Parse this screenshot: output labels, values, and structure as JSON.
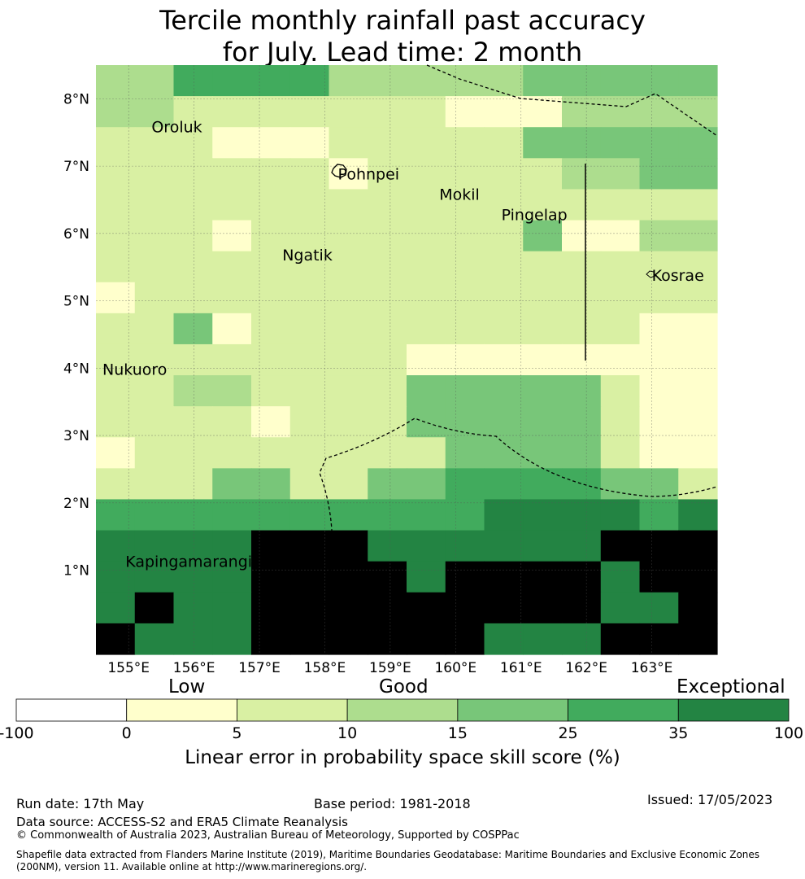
{
  "title": {
    "line1": "Tercile monthly rainfall past accuracy",
    "line2": "for July. Lead time: 2 month"
  },
  "map": {
    "lat_labels": [
      "8°N",
      "7°N",
      "6°N",
      "5°N",
      "4°N",
      "3°N",
      "2°N",
      "1°N"
    ],
    "lon_labels": [
      "155°E",
      "156°E",
      "157°E",
      "158°E",
      "159°E",
      "160°E",
      "161°E",
      "162°E",
      "163°E"
    ],
    "lon_range": [
      154.5,
      164.0
    ],
    "lat_range": [
      -0.25,
      8.5
    ],
    "island_labels": [
      {
        "name": "Oroluk",
        "lon": 155.35,
        "lat": 7.5
      },
      {
        "name": "Pohnpei",
        "lon": 158.2,
        "lat": 6.8
      },
      {
        "name": "Mokil",
        "lon": 159.75,
        "lat": 6.5
      },
      {
        "name": "Pingelap",
        "lon": 160.7,
        "lat": 6.2
      },
      {
        "name": "Ngatik",
        "lon": 157.35,
        "lat": 5.6
      },
      {
        "name": "Kosrae",
        "lon": 163.0,
        "lat": 5.3
      },
      {
        "name": "Nukuoro",
        "lon": 154.6,
        "lat": 3.9
      },
      {
        "name": "Kapingamarangi",
        "lon": 154.95,
        "lat": 1.05
      }
    ],
    "grid_rows": [
      "3355553333344444",
      "3322222221113333",
      "2221112222244444",
      "2222221222223344",
      "2222222222222222",
      "2221222222241133",
      "2222222222222222",
      "1222222222222222",
      "2241222222222211",
      "2222222211111111",
      "2233222244444211",
      "2222122244444211",
      "1222222224444211",
      "2224422445555442",
      "5555555555666656",
      "6666777666666777",
      "6666777767777677",
      "6766777777777667",
      "7666777777666777"
    ]
  },
  "colorbar": {
    "captions": {
      "low": "Low",
      "good": "Good",
      "exceptional": "Exceptional"
    },
    "tick_labels": [
      "-100",
      "0",
      "5",
      "10",
      "15",
      "25",
      "35",
      "100"
    ],
    "colors": [
      "#ffffff",
      "#ffffcc",
      "#d9f0a3",
      "#addd8e",
      "#78c679",
      "#41ab5d",
      "#238443"
    ],
    "label": "Linear error in probability space skill score (%)"
  },
  "footer": {
    "run_date": "Run date: 17th May",
    "base_period": "Base period: 1981-2018",
    "issued": "Issued: 17/05/2023",
    "data_source": "Data source: ACCESS-S2 and ERA5 Climate Reanalysis",
    "copyright": "© Commonwealth of Australia 2023, Australian Bureau of Meteorology, Supported by COSPPac",
    "shapefile": "Shapefile data extracted from Flanders Marine Institute (2019), Maritime Boundaries Geodatabase: Maritime Boundaries and Exclusive Economic Zones (200NM), version 11. Available online at http://www.marineregions.org/."
  }
}
